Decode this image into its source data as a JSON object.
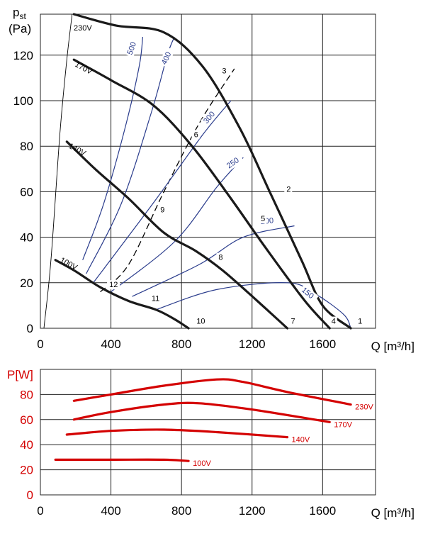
{
  "chart_data": [
    {
      "type": "line",
      "ylabel": "p",
      "ylabel_sub": "st",
      "yunit": "(Pa)",
      "xlabel": "Q [m³/h]",
      "xlim": [
        0,
        1900
      ],
      "ylim": [
        0,
        138
      ],
      "x_ticks": [
        0,
        400,
        800,
        1200,
        1600
      ],
      "y_ticks": [
        0,
        20,
        40,
        60,
        80,
        100,
        120
      ],
      "grid": true,
      "colors": {
        "voltage": "#1a1a1a",
        "efficiency": "#2a3c8c",
        "system": "#000000"
      },
      "voltage_curves": [
        {
          "name": "230V",
          "points": [
            [
              190,
              138
            ],
            [
              430,
              133
            ],
            [
              700,
              130
            ],
            [
              920,
              115
            ],
            [
              1130,
              88
            ],
            [
              1300,
              60
            ],
            [
              1480,
              30
            ],
            [
              1600,
              10
            ],
            [
              1760,
              0
            ]
          ]
        },
        {
          "name": "170V",
          "points": [
            [
              190,
              118
            ],
            [
              400,
              109
            ],
            [
              640,
              98
            ],
            [
              860,
              80
            ],
            [
              1080,
              57
            ],
            [
              1280,
              35
            ],
            [
              1500,
              12
            ],
            [
              1640,
              0
            ]
          ]
        },
        {
          "name": "140V",
          "points": [
            [
              150,
              82
            ],
            [
              310,
              70
            ],
            [
              500,
              57
            ],
            [
              700,
              42
            ],
            [
              880,
              34
            ],
            [
              1040,
              25
            ],
            [
              1230,
              12
            ],
            [
              1400,
              0
            ]
          ]
        },
        {
          "name": "100V",
          "points": [
            [
              85,
              30
            ],
            [
              200,
              25
            ],
            [
              340,
              18
            ],
            [
              500,
              12
            ],
            [
              660,
              8
            ],
            [
              760,
              4
            ],
            [
              840,
              0
            ]
          ]
        }
      ],
      "efficiency_curves": [
        {
          "label": "500",
          "points": [
            [
              240,
              30
            ],
            [
              360,
              55
            ],
            [
              480,
              88
            ],
            [
              560,
              115
            ],
            [
              580,
              128
            ]
          ]
        },
        {
          "label": "400",
          "points": [
            [
              260,
              24
            ],
            [
              460,
              55
            ],
            [
              630,
              95
            ],
            [
              720,
              120
            ],
            [
              760,
              128
            ]
          ]
        },
        {
          "label": "300",
          "points": [
            [
              300,
              20
            ],
            [
              640,
              55
            ],
            [
              920,
              85
            ],
            [
              1080,
              100
            ]
          ]
        },
        {
          "label": "250",
          "points": [
            [
              400,
              16
            ],
            [
              760,
              38
            ],
            [
              1000,
              62
            ],
            [
              1150,
              75
            ]
          ]
        },
        {
          "label": "200",
          "points": [
            [
              520,
              14
            ],
            [
              900,
              28
            ],
            [
              1150,
              40
            ],
            [
              1440,
              45
            ]
          ]
        },
        {
          "label": "150",
          "points": [
            [
              650,
              8
            ],
            [
              1000,
              17
            ],
            [
              1400,
              20
            ],
            [
              1560,
              15
            ],
            [
              1720,
              6
            ],
            [
              1760,
              0
            ]
          ]
        }
      ],
      "system_curves": [
        {
          "name": "system-dashed",
          "style": "dashed",
          "points": [
            [
              340,
              16
            ],
            [
              500,
              28
            ],
            [
              700,
              60
            ],
            [
              900,
              90
            ],
            [
              1100,
              114
            ]
          ]
        },
        {
          "name": "system-thin",
          "style": "solid",
          "points": [
            [
              20,
              0
            ],
            [
              60,
              30
            ],
            [
              110,
              85
            ],
            [
              150,
              118
            ],
            [
              180,
              138
            ]
          ]
        }
      ],
      "point_labels": [
        {
          "label": "1",
          "x": 1800,
          "y": 2
        },
        {
          "label": "2",
          "x": 1395,
          "y": 60
        },
        {
          "label": "3",
          "x": 1030,
          "y": 112
        },
        {
          "label": "4",
          "x": 1650,
          "y": 2
        },
        {
          "label": "5",
          "x": 1250,
          "y": 47
        },
        {
          "label": "6",
          "x": 870,
          "y": 84
        },
        {
          "label": "7",
          "x": 1420,
          "y": 2
        },
        {
          "label": "8",
          "x": 1010,
          "y": 30
        },
        {
          "label": "9",
          "x": 680,
          "y": 51
        },
        {
          "label": "10",
          "x": 885,
          "y": 2
        },
        {
          "label": "11",
          "x": 630,
          "y": 12
        },
        {
          "label": "12",
          "x": 390,
          "y": 18
        }
      ]
    },
    {
      "type": "line",
      "ylabel": "P[W]",
      "xlabel": "Q [m³/h]",
      "xlim": [
        0,
        1900
      ],
      "ylim": [
        0,
        100
      ],
      "x_ticks": [
        0,
        400,
        800,
        1200,
        1600
      ],
      "y_ticks": [
        0,
        20,
        40,
        60,
        80
      ],
      "grid": true,
      "color": "#d40000",
      "series": [
        {
          "name": "230V",
          "points": [
            [
              190,
              75
            ],
            [
              400,
              80
            ],
            [
              700,
              87
            ],
            [
              1000,
              92
            ],
            [
              1150,
              90
            ],
            [
              1400,
              82
            ],
            [
              1760,
              72
            ]
          ]
        },
        {
          "name": "170V",
          "points": [
            [
              190,
              60
            ],
            [
              400,
              66
            ],
            [
              700,
              72
            ],
            [
              900,
              73
            ],
            [
              1200,
              68
            ],
            [
              1640,
              58
            ]
          ]
        },
        {
          "name": "140V",
          "points": [
            [
              150,
              48
            ],
            [
              400,
              51
            ],
            [
              700,
              52
            ],
            [
              1000,
              50
            ],
            [
              1400,
              46
            ]
          ]
        },
        {
          "name": "100V",
          "points": [
            [
              85,
              28
            ],
            [
              400,
              28
            ],
            [
              700,
              28
            ],
            [
              840,
              27
            ]
          ]
        }
      ]
    }
  ]
}
